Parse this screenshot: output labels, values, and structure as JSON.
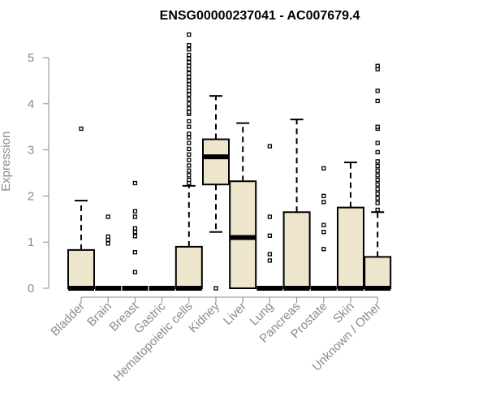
{
  "chart_data": {
    "type": "boxplot",
    "title": "ENSG00000237041 - AC007679.4",
    "ylabel": "Expression",
    "xlabel": "",
    "ylim": [
      0,
      5.5
    ],
    "yticks": [
      0,
      1,
      2,
      3,
      4,
      5
    ],
    "grid": false,
    "legend": "none",
    "colors": {
      "box_fill": "#ede5cc",
      "stroke": "#000000",
      "axis": "#8a8a8a"
    },
    "categories": [
      "Bladder",
      "Brain",
      "Breast",
      "Gastric",
      "Hematopoietic cells",
      "Kidney",
      "Liver",
      "Lung",
      "Pancreas",
      "Prostate",
      "Skin",
      "Unknown / Other"
    ],
    "boxes": [
      {
        "category": "Bladder",
        "q1": 0,
        "median": 0,
        "q3": 0.83,
        "whisker_low": 0,
        "whisker_high": 1.9,
        "outliers": [
          3.46
        ]
      },
      {
        "category": "Brain",
        "q1": 0,
        "median": 0,
        "q3": 0,
        "whisker_low": 0,
        "whisker_high": 0,
        "outliers": [
          0.97,
          1.05,
          1.12,
          1.55
        ]
      },
      {
        "category": "Breast",
        "q1": 0,
        "median": 0,
        "q3": 0,
        "whisker_low": 0,
        "whisker_high": 0,
        "outliers": [
          0.35,
          0.78,
          1.13,
          1.22,
          1.3,
          1.55,
          1.67,
          2.28
        ]
      },
      {
        "category": "Gastric",
        "q1": 0,
        "median": 0,
        "q3": 0,
        "whisker_low": 0,
        "whisker_high": 0,
        "outliers": []
      },
      {
        "category": "Hematopoietic cells",
        "q1": 0,
        "median": 0,
        "q3": 0.9,
        "whisker_low": 0,
        "whisker_high": 2.22,
        "outliers": [
          2.28,
          2.35,
          2.45,
          2.55,
          2.66,
          2.78,
          2.9,
          3.02,
          3.15,
          3.27,
          3.35,
          3.5,
          3.62,
          3.78,
          3.82,
          3.9,
          4.0,
          4.1,
          4.2,
          4.28,
          4.35,
          4.42,
          4.5,
          4.58,
          4.66,
          4.75,
          4.82,
          4.9,
          4.98,
          5.06,
          5.18,
          5.27,
          5.5
        ]
      },
      {
        "category": "Kidney",
        "q1": 2.25,
        "median": 2.85,
        "q3": 3.23,
        "whisker_low": 1.22,
        "whisker_high": 4.17,
        "outliers": [
          0
        ]
      },
      {
        "category": "Liver",
        "q1": 0,
        "median": 1.1,
        "q3": 2.32,
        "whisker_low": 0,
        "whisker_high": 3.58,
        "outliers": []
      },
      {
        "category": "Lung",
        "q1": 0,
        "median": 0,
        "q3": 0,
        "whisker_low": 0,
        "whisker_high": 0,
        "outliers": [
          0.6,
          0.74,
          1.14,
          1.55,
          3.08
        ]
      },
      {
        "category": "Pancreas",
        "q1": 0,
        "median": 0,
        "q3": 1.65,
        "whisker_low": 0,
        "whisker_high": 3.66,
        "outliers": []
      },
      {
        "category": "Prostate",
        "q1": 0,
        "median": 0,
        "q3": 0,
        "whisker_low": 0,
        "whisker_high": 0,
        "outliers": [
          0.85,
          1.22,
          1.37,
          1.87,
          2.0,
          2.6
        ]
      },
      {
        "category": "Skin",
        "q1": 0,
        "median": 0,
        "q3": 1.75,
        "whisker_low": 0,
        "whisker_high": 2.73,
        "outliers": []
      },
      {
        "category": "Unknown / Other",
        "q1": 0,
        "median": 0,
        "q3": 0.68,
        "whisker_low": 0,
        "whisker_high": 1.65,
        "outliers": [
          1.7,
          1.85,
          1.95,
          2.05,
          2.15,
          2.25,
          2.35,
          2.45,
          2.55,
          2.65,
          2.75,
          2.95,
          3.15,
          3.46,
          3.5,
          4.06,
          4.28,
          4.75,
          4.82
        ]
      }
    ]
  }
}
